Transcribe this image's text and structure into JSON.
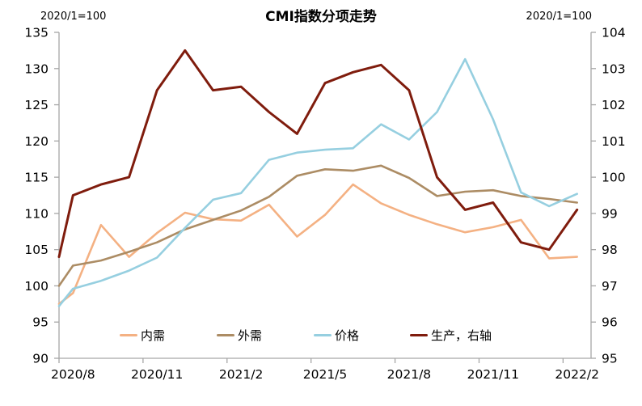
{
  "title": "CMI指数分项走势",
  "axis_note_left": "2020/1=100",
  "axis_note_right": "2020/1=100",
  "legend": {
    "items": [
      {
        "label": "内需",
        "color": "#F4B183"
      },
      {
        "label": "外需",
        "color": "#AC8C64"
      },
      {
        "label": "价格",
        "color": "#96CFE0"
      },
      {
        "label": "生产，右轴",
        "color": "#7F1C0D"
      }
    ]
  },
  "colors": {
    "axis": "#A6A6A6",
    "text": "#000000",
    "background": "#FFFFFF"
  },
  "chart_data": {
    "type": "line",
    "title": "CMI指数分项走势",
    "subtitle_left": "2020/1=100",
    "subtitle_right": "2020/1=100",
    "grid": "off",
    "legend_position": "bottom",
    "categories": [
      "2020/8",
      "2020/9",
      "2020/10",
      "2020/11",
      "2020/12",
      "2021/1",
      "2021/2",
      "2021/3",
      "2021/4",
      "2021/5",
      "2021/6",
      "2021/7",
      "2021/8",
      "2021/9",
      "2021/10",
      "2021/11",
      "2021/12",
      "2022/1",
      "2022/2"
    ],
    "x_tick_labels": [
      "2020/8",
      "2020/11",
      "2021/2",
      "2021/5",
      "2021/8",
      "2021/11",
      "2022/2"
    ],
    "x_label_indices": [
      0,
      3,
      6,
      9,
      12,
      15,
      18
    ],
    "left_axis": {
      "min": 90,
      "max": 135,
      "step": 5,
      "ticks": [
        135,
        130,
        125,
        120,
        115,
        110,
        105,
        100,
        95,
        90
      ]
    },
    "right_axis": {
      "min": 95,
      "max": 104,
      "step": 1,
      "ticks": [
        104,
        103,
        102,
        101,
        100,
        99,
        98,
        97,
        96,
        95
      ]
    },
    "series": [
      {
        "name": "内需",
        "axis": "left",
        "color": "#F4B183",
        "left_edge_value": 97.5,
        "values": [
          99.0,
          108.4,
          104.0,
          107.3,
          110.1,
          109.2,
          109.0,
          111.2,
          106.8,
          109.8,
          114.0,
          111.4,
          109.8,
          108.5,
          107.4,
          108.1,
          109.1,
          103.8,
          104.0
        ]
      },
      {
        "name": "外需",
        "axis": "left",
        "color": "#AC8C64",
        "left_edge_value": 100.0,
        "values": [
          102.8,
          103.5,
          104.7,
          106.0,
          107.8,
          109.1,
          110.4,
          112.3,
          115.2,
          116.1,
          115.9,
          116.6,
          114.9,
          112.4,
          113.0,
          113.2,
          112.4,
          112.0,
          111.5
        ]
      },
      {
        "name": "价格",
        "axis": "left",
        "color": "#96CFE0",
        "left_edge_value": 97.2,
        "values": [
          99.6,
          100.7,
          102.1,
          103.9,
          108.0,
          111.9,
          112.8,
          117.4,
          118.4,
          118.8,
          119.0,
          122.3,
          120.2,
          124.0,
          131.3,
          123.0,
          112.9,
          111.0,
          112.7
        ]
      },
      {
        "name": "生产，右轴",
        "axis": "right",
        "color": "#7F1C0D",
        "left_edge_value": 97.8,
        "values": [
          99.5,
          99.8,
          100.0,
          102.4,
          103.5,
          102.4,
          102.5,
          101.8,
          101.2,
          102.6,
          102.9,
          103.1,
          102.4,
          100.0,
          99.1,
          99.3,
          98.2,
          98.0,
          99.1
        ]
      }
    ]
  }
}
